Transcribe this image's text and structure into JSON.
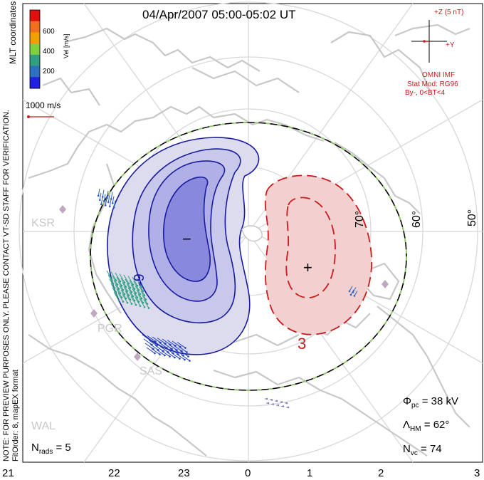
{
  "title": "04/Apr/2007 05:00-05:02 UT",
  "coords_label": "MLT coordinates",
  "colorbar": {
    "label": "Vel [m/s]",
    "ticks": [
      "600",
      "400",
      "200"
    ],
    "colors": [
      "#e01010",
      "#f07020",
      "#f0a000",
      "#80d040",
      "#30a080",
      "#3070c0",
      "#2020e0"
    ]
  },
  "vector_scale": "1000 m/s",
  "imf": {
    "z_label": "+Z (5 nT)",
    "y_label": "+Y",
    "title": "OMNI IMF",
    "stat_mod": "Stat Mod: RG96",
    "condition": "By-, 0<BT<4",
    "color": "#e01010"
  },
  "side_notes": {
    "preview": "NOTE: FOR PREVIEW PURPOSES ONLY. PLEASE CONTACT VT-SD STAFF FOR VERIFICATION.",
    "fit_order": "FitOrder: 8, mapEX format"
  },
  "stations": [
    "KSR",
    "PGR",
    "SAS",
    "WAL"
  ],
  "latitude_labels": [
    "70°",
    "60°",
    "50°"
  ],
  "contour_labels": {
    "neg": "-9",
    "pos": "3",
    "min_marker": "−",
    "max_marker": "+"
  },
  "stats": {
    "phi_sym": "Φ",
    "phi_sub": "pc",
    "phi_value": " = 38 kV",
    "lambda_sym": "Λ",
    "lambda_sub": "HM",
    "lambda_value": " = 62°",
    "nvc_sym": "N",
    "nvc_sub": "vc",
    "nvc_value": " = 74",
    "nrads_sym": "N",
    "nrads_sub": "rads",
    "nrads_value": " = 5"
  },
  "mlt_axis": [
    "21",
    "22",
    "23",
    "0",
    "1",
    "2",
    "3"
  ],
  "colors": {
    "negative_fill": "#dcdcee",
    "negative_core": "#8888dd",
    "negative_line": "#1a1aa0",
    "positive_fill": "#f2d0d0",
    "positive_line": "#cc1a1a",
    "coast": "#c8c8c8",
    "grid": "#d8d8d8",
    "hmb_dash": "#90d060"
  }
}
